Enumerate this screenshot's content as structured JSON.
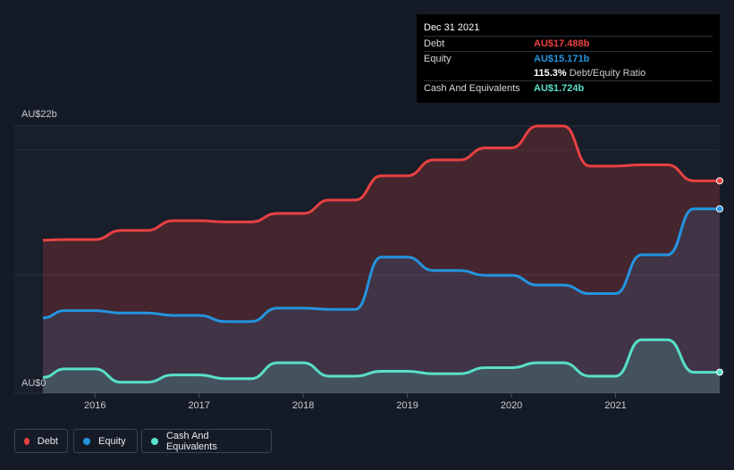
{
  "chart_data": {
    "type": "area",
    "x_unit": "year",
    "xlim": [
      2015.5,
      2022.0
    ],
    "ylim": [
      0,
      22
    ],
    "y_axis_labels": [
      "AU$22b",
      "AU$0"
    ],
    "x_ticks": [
      "2016",
      "2017",
      "2018",
      "2019",
      "2020",
      "2021"
    ],
    "series": [
      {
        "name": "Debt",
        "color": "#e84142",
        "points": [
          [
            2015.5,
            12.6
          ],
          [
            2015.71,
            12.65
          ],
          [
            2016.0,
            12.65
          ],
          [
            2016.25,
            13.4
          ],
          [
            2016.5,
            13.4
          ],
          [
            2016.75,
            14.2
          ],
          [
            2017.0,
            14.2
          ],
          [
            2017.25,
            14.1
          ],
          [
            2017.5,
            14.1
          ],
          [
            2017.75,
            14.8
          ],
          [
            2018.0,
            14.8
          ],
          [
            2018.25,
            15.9
          ],
          [
            2018.5,
            15.9
          ],
          [
            2018.75,
            17.9
          ],
          [
            2019.0,
            17.9
          ],
          [
            2019.25,
            19.2
          ],
          [
            2019.5,
            19.2
          ],
          [
            2019.75,
            20.2
          ],
          [
            2020.0,
            20.2
          ],
          [
            2020.25,
            22.0
          ],
          [
            2020.5,
            22.0
          ],
          [
            2020.75,
            18.7
          ],
          [
            2021.0,
            18.7
          ],
          [
            2021.25,
            18.8
          ],
          [
            2021.5,
            18.8
          ],
          [
            2021.75,
            17.488
          ],
          [
            2022.0,
            17.488
          ]
        ]
      },
      {
        "name": "Equity",
        "color": "#2394df",
        "points": [
          [
            2015.5,
            6.2
          ],
          [
            2015.71,
            6.8
          ],
          [
            2016.0,
            6.8
          ],
          [
            2016.25,
            6.6
          ],
          [
            2016.5,
            6.6
          ],
          [
            2016.75,
            6.4
          ],
          [
            2017.0,
            6.4
          ],
          [
            2017.25,
            5.9
          ],
          [
            2017.5,
            5.9
          ],
          [
            2017.75,
            7.0
          ],
          [
            2018.0,
            7.0
          ],
          [
            2018.25,
            6.9
          ],
          [
            2018.5,
            6.9
          ],
          [
            2018.75,
            11.2
          ],
          [
            2019.0,
            11.2
          ],
          [
            2019.25,
            10.1
          ],
          [
            2019.5,
            10.1
          ],
          [
            2019.75,
            9.7
          ],
          [
            2020.0,
            9.7
          ],
          [
            2020.25,
            8.9
          ],
          [
            2020.5,
            8.9
          ],
          [
            2020.75,
            8.2
          ],
          [
            2021.0,
            8.2
          ],
          [
            2021.25,
            11.4
          ],
          [
            2021.5,
            11.4
          ],
          [
            2021.75,
            15.171
          ],
          [
            2022.0,
            15.171
          ]
        ]
      },
      {
        "name": "Cash And Equivalents",
        "color": "#58e0c9",
        "points": [
          [
            2015.5,
            1.3
          ],
          [
            2015.71,
            2.0
          ],
          [
            2016.0,
            2.0
          ],
          [
            2016.25,
            0.9
          ],
          [
            2016.5,
            0.9
          ],
          [
            2016.75,
            1.5
          ],
          [
            2017.0,
            1.5
          ],
          [
            2017.25,
            1.2
          ],
          [
            2017.5,
            1.2
          ],
          [
            2017.75,
            2.5
          ],
          [
            2018.0,
            2.5
          ],
          [
            2018.25,
            1.4
          ],
          [
            2018.5,
            1.4
          ],
          [
            2018.75,
            1.8
          ],
          [
            2019.0,
            1.8
          ],
          [
            2019.25,
            1.6
          ],
          [
            2019.5,
            1.6
          ],
          [
            2019.75,
            2.1
          ],
          [
            2020.0,
            2.1
          ],
          [
            2020.25,
            2.5
          ],
          [
            2020.5,
            2.5
          ],
          [
            2020.75,
            1.4
          ],
          [
            2021.0,
            1.4
          ],
          [
            2021.25,
            4.4
          ],
          [
            2021.5,
            4.4
          ],
          [
            2021.75,
            1.724
          ],
          [
            2022.0,
            1.724
          ]
        ]
      }
    ],
    "grid": true,
    "legend_position": "bottom-left"
  },
  "tooltip": {
    "date": "Dec 31 2021",
    "debt_label": "Debt",
    "debt_value": "AU$17.488b",
    "equity_label": "Equity",
    "equity_value": "AU$15.171b",
    "ratio_value": "115.3%",
    "ratio_name": "Debt/Equity Ratio",
    "cash_label": "Cash And Equivalents",
    "cash_value": "AU$1.724b"
  },
  "legend": [
    {
      "label": "Debt",
      "color": "#e84142"
    },
    {
      "label": "Equity",
      "color": "#2394df"
    },
    {
      "label": "Cash And Equivalents",
      "color": "#58e0c9"
    }
  ],
  "colors": {
    "background": "#151b26",
    "debt": "#e84142",
    "equity": "#2394df",
    "cash": "#58e0c9"
  }
}
